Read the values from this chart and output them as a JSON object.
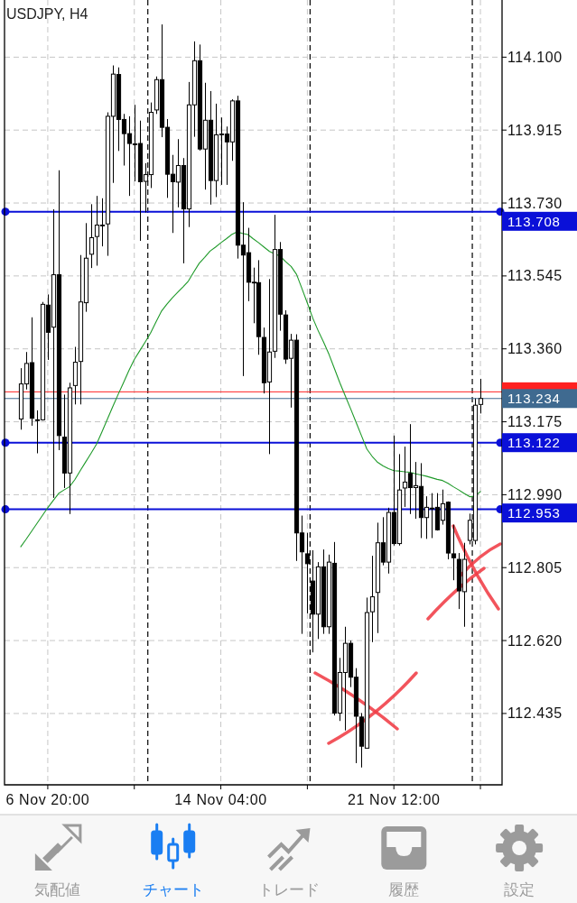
{
  "chart_data": {
    "type": "candlestick",
    "title": "USDJPY, H4",
    "categories": [
      null,
      null,
      null,
      null,
      null,
      "6 Nov 20:00",
      null,
      null,
      null,
      null,
      null,
      null,
      null,
      null,
      null,
      null,
      null,
      null,
      null,
      null,
      null,
      null,
      null,
      null,
      null,
      null,
      null,
      null,
      null,
      null,
      null,
      null,
      null,
      null,
      null,
      null,
      null,
      "14 Nov 04:00",
      null,
      null,
      null,
      null,
      null,
      null,
      null,
      null,
      null,
      null,
      null,
      null,
      null,
      null,
      null,
      null,
      null,
      null,
      null,
      null,
      null,
      null,
      null,
      null,
      null,
      null,
      null,
      null,
      null,
      null,
      null,
      "21 Nov 12:00",
      null,
      null,
      null,
      null,
      null,
      null,
      null,
      null,
      null,
      null,
      null,
      null,
      null,
      null,
      null,
      null
    ],
    "series": [
      {
        "color": "#000000",
        "ohlc": [
          [
            113.182,
            113.311,
            113.155,
            113.271
          ],
          [
            113.271,
            113.352,
            113.257,
            113.323
          ],
          [
            113.325,
            113.44,
            113.165,
            113.184
          ],
          [
            113.18,
            113.204,
            113.095,
            113.18
          ],
          [
            113.18,
            113.479,
            113.178,
            113.473
          ],
          [
            113.471,
            113.498,
            113.332,
            113.402
          ],
          [
            113.415,
            113.714,
            112.982,
            113.548
          ],
          [
            113.548,
            113.813,
            113.103,
            113.14
          ],
          [
            113.136,
            113.244,
            113.007,
            113.045
          ],
          [
            113.045,
            113.274,
            112.941,
            113.261
          ],
          [
            113.267,
            113.365,
            113.219,
            113.326
          ],
          [
            113.328,
            113.598,
            113.219,
            113.479
          ],
          [
            113.477,
            113.679,
            113.454,
            113.59
          ],
          [
            113.6,
            113.727,
            113.565,
            113.642
          ],
          [
            113.645,
            113.748,
            113.571,
            113.674
          ],
          [
            113.674,
            113.742,
            113.62,
            113.674
          ],
          [
            113.677,
            113.96,
            113.596,
            113.95
          ],
          [
            113.95,
            114.079,
            113.781,
            114.057
          ],
          [
            114.056,
            114.074,
            113.862,
            113.942
          ],
          [
            113.942,
            113.956,
            113.825,
            113.906
          ],
          [
            113.906,
            113.95,
            113.748,
            113.881
          ],
          [
            113.88,
            113.979,
            113.785,
            113.88
          ],
          [
            113.881,
            113.939,
            113.634,
            113.784
          ],
          [
            113.785,
            113.831,
            113.706,
            113.802
          ],
          [
            113.802,
            113.985,
            113.768,
            113.96
          ],
          [
            113.966,
            114.051,
            113.956,
            114.043
          ],
          [
            114.043,
            114.183,
            113.897,
            113.922
          ],
          [
            113.922,
            113.943,
            113.743,
            113.803
          ],
          [
            113.803,
            113.852,
            113.654,
            113.784
          ],
          [
            113.783,
            113.892,
            113.719,
            113.825
          ],
          [
            113.825,
            113.844,
            113.577,
            113.715
          ],
          [
            113.715,
            114.037,
            113.669,
            113.979
          ],
          [
            113.979,
            114.14,
            113.898,
            114.091
          ],
          [
            114.091,
            114.132,
            113.863,
            113.867
          ],
          [
            113.867,
            114.035,
            113.764,
            113.94
          ],
          [
            113.94,
            114.014,
            113.726,
            113.787
          ],
          [
            113.787,
            113.982,
            113.745,
            113.903
          ],
          [
            113.905,
            113.947,
            113.776,
            113.905
          ],
          [
            113.905,
            113.924,
            113.776,
            113.885
          ],
          [
            113.885,
            113.993,
            113.837,
            113.989
          ],
          [
            113.989,
            114.002,
            113.589,
            113.623
          ],
          [
            113.623,
            113.732,
            113.291,
            113.598
          ],
          [
            113.604,
            113.667,
            113.481,
            113.529
          ],
          [
            113.529,
            113.566,
            113.425,
            113.529
          ],
          [
            113.528,
            113.585,
            113.345,
            113.391
          ],
          [
            113.389,
            113.414,
            113.247,
            113.274
          ],
          [
            113.276,
            113.537,
            113.093,
            113.352
          ],
          [
            113.354,
            113.7,
            113.337,
            113.612
          ],
          [
            113.612,
            113.631,
            113.406,
            113.448
          ],
          [
            113.446,
            113.458,
            113.322,
            113.334
          ],
          [
            113.336,
            113.398,
            113.211,
            113.382
          ],
          [
            113.382,
            113.397,
            112.822,
            112.893
          ],
          [
            112.893,
            112.937,
            112.637,
            112.845
          ],
          [
            112.84,
            112.893,
            112.689,
            112.815
          ],
          [
            112.771,
            112.849,
            112.59,
            112.687
          ],
          [
            112.687,
            112.819,
            112.624,
            112.807
          ],
          [
            112.807,
            112.851,
            112.637,
            112.655
          ],
          [
            112.655,
            112.838,
            112.637,
            112.819
          ],
          [
            112.816,
            112.87,
            112.43,
            112.436
          ],
          [
            112.436,
            112.576,
            112.416,
            112.539
          ],
          [
            112.539,
            112.655,
            112.392,
            112.613
          ],
          [
            112.613,
            112.62,
            112.502,
            112.527
          ],
          [
            112.527,
            112.55,
            112.309,
            112.428
          ],
          [
            112.426,
            112.436,
            112.298,
            112.352
          ],
          [
            112.347,
            112.729,
            112.347,
            112.691
          ],
          [
            112.693,
            112.835,
            112.616,
            112.731
          ],
          [
            112.742,
            112.919,
            112.639,
            112.868
          ],
          [
            112.868,
            112.933,
            112.811,
            112.819
          ],
          [
            112.819,
            112.957,
            112.79,
            112.945
          ],
          [
            112.945,
            113.14,
            112.861,
            112.866
          ],
          [
            112.866,
            113.093,
            112.861,
            113.002
          ],
          [
            113.007,
            113.112,
            112.959,
            113.022
          ],
          [
            113.044,
            113.169,
            112.941,
            113.008
          ],
          [
            113.008,
            113.073,
            112.929,
            113.013
          ],
          [
            113.011,
            113.07,
            112.88,
            112.932
          ],
          [
            112.932,
            112.986,
            112.878,
            112.958
          ],
          [
            112.956,
            112.994,
            112.88,
            112.956
          ],
          [
            112.958,
            112.994,
            112.899,
            112.901
          ],
          [
            112.925,
            113.003,
            112.914,
            112.967
          ],
          [
            112.971,
            112.973,
            112.826,
            112.842
          ],
          [
            112.84,
            112.914,
            112.773,
            112.83
          ],
          [
            112.826,
            112.842,
            112.7,
            112.746
          ],
          [
            112.744,
            112.868,
            112.655,
            112.826
          ],
          [
            112.874,
            112.942,
            112.864,
            112.925
          ],
          [
            112.874,
            113.234,
            112.864,
            113.217
          ],
          [
            113.219,
            113.284,
            113.196,
            113.234
          ]
        ]
      },
      {
        "type": "line",
        "color": "#1f9a2a",
        "values": [
          112.858,
          112.877,
          112.897,
          112.917,
          112.937,
          112.957,
          112.975,
          112.993,
          113.002,
          113.01,
          113.028,
          113.051,
          113.073,
          113.095,
          113.118,
          113.149,
          113.181,
          113.213,
          113.244,
          113.274,
          113.305,
          113.333,
          113.355,
          113.377,
          113.4,
          113.428,
          113.455,
          113.473,
          113.489,
          113.503,
          113.517,
          113.532,
          113.555,
          113.577,
          113.592,
          113.608,
          113.618,
          113.629,
          113.639,
          113.65,
          113.657,
          113.653,
          113.65,
          113.639,
          113.629,
          113.618,
          113.607,
          113.601,
          113.595,
          113.581,
          113.569,
          113.549,
          113.513,
          113.476,
          113.438,
          113.406,
          113.377,
          113.346,
          113.31,
          113.274,
          113.241,
          113.208,
          113.174,
          113.14,
          113.106,
          113.087,
          113.072,
          113.063,
          113.056,
          113.051,
          113.05,
          113.048,
          113.047,
          113.043,
          113.04,
          113.037,
          113.033,
          113.029,
          113.026,
          113.019,
          113.01,
          113.002,
          112.993,
          112.985,
          112.986,
          112.998
        ]
      }
    ],
    "ylim": [
      112.254,
      114.245
    ],
    "yticks": [
      112.435,
      {
        "value": 112.62,
        "label": "112.620"
      },
      112.805,
      {
        "value": 112.99,
        "label": "112.990"
      },
      113.175,
      {
        "value": 113.36,
        "label": "113.360"
      },
      113.545,
      {
        "value": 113.73,
        "label": "113.730"
      },
      113.915,
      {
        "value": 114.1,
        "label": "114.100"
      }
    ],
    "grid": true,
    "ref_lines": [
      {
        "axis": "y",
        "value": 113.708,
        "label": "113.708",
        "color": "#0a10d8",
        "line_style": "solid"
      },
      {
        "axis": "y",
        "value": 113.122,
        "label": "113.122",
        "color": "#0a10d8",
        "line_style": "solid"
      },
      {
        "axis": "y",
        "value": 112.953,
        "label": "112.953",
        "color": "#0a10d8",
        "line_style": "solid"
      },
      {
        "axis": "y",
        "value": 113.251,
        "color": "#ff2020"
      },
      {
        "axis": "y",
        "value": 113.234,
        "label": "113.234",
        "color": "#3f6a90"
      }
    ],
    "annotations": [
      "気配値",
      "チャート",
      "トレード",
      "履歴",
      "設定"
    ]
  }
}
